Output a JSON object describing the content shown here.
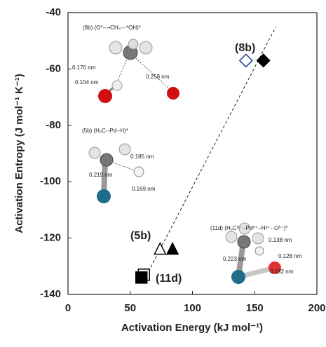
{
  "chart_data": {
    "type": "scatter",
    "xlabel": "Activation Energy (kJ mol⁻¹)",
    "ylabel": "Activation Entropy (J mol⁻¹ K⁻¹)",
    "xlim": [
      0,
      200
    ],
    "xticks": [
      0,
      50,
      100,
      150,
      200
    ],
    "ylim": [
      -140,
      -40
    ],
    "yticks": [
      -40,
      -60,
      -80,
      -100,
      -120,
      -140
    ],
    "series": [
      {
        "marker": "diamond",
        "filled": false,
        "color": "#1f3f9a",
        "x": [
          143
        ],
        "y": [
          -57
        ]
      },
      {
        "marker": "diamond",
        "filled": true,
        "color": "#000000",
        "x": [
          157
        ],
        "y": [
          -57
        ]
      },
      {
        "marker": "triangle",
        "filled": false,
        "color": "#000000",
        "x": [
          74
        ],
        "y": [
          -124
        ]
      },
      {
        "marker": "triangle",
        "filled": true,
        "color": "#000000",
        "x": [
          84
        ],
        "y": [
          -124
        ]
      },
      {
        "marker": "square",
        "filled": false,
        "color": "#000000",
        "x": [
          61
        ],
        "y": [
          -133
        ]
      },
      {
        "marker": "square",
        "filled": true,
        "color": "#000000",
        "x": [
          59
        ],
        "y": [
          -134
        ]
      }
    ],
    "trendline": {
      "x": [
        61,
        167
      ],
      "y": [
        -135,
        -45
      ]
    },
    "annotations": [
      "(8b)",
      "(5b)",
      "(11d)"
    ],
    "insets": [
      {
        "title": "(8b) (O*---•CH₃---*OH)*",
        "distances": [
          "0.170 nm",
          "0.258 nm",
          "0.104 nm"
        ]
      },
      {
        "title": "(5b) (H₃C--Pd--H)*",
        "distances": [
          "0.185 nm",
          "0.219 nm",
          "0.169 nm"
        ]
      },
      {
        "title": "(11d) (H₃Cᵟ⁻--Pdᵟ⁺--Hᵟ⁺--Oᵟ⁻)*",
        "distances": [
          "0.138 nm",
          "0.128 nm",
          "0.223 nm",
          "0.182 nm"
        ]
      }
    ]
  }
}
